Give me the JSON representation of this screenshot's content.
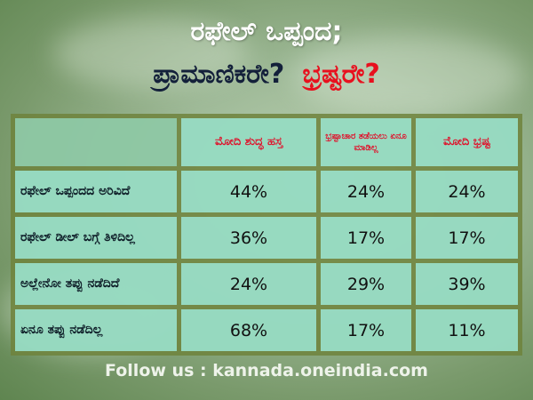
{
  "title": {
    "line1": "ರಫೇಲ್ ಒಪ್ಪಂದ;",
    "line2_part1": "ಪ್ರಾಮಾಣಿಕರೇ?",
    "line2_part2": "ಭ್ರಷ್ಟರೇ?"
  },
  "table": {
    "headers": [
      "ಮೋದಿ ಶುದ್ಧ ಹಸ್ತ",
      "ಭ್ರಷ್ಟಾಚಾರ ತಡೆಯಲು ಏನೂ ಮಾಡಿಲ್ಲ",
      "ಮೋದಿ ಭ್ರಷ್ಟ"
    ],
    "rows": [
      {
        "label": "ರಫೇಲ್ ಒಪ್ಪಂದದ ಅರಿವಿದೆ",
        "values": [
          "44%",
          "24%",
          "24%"
        ]
      },
      {
        "label": "ರಫೇಲ್ ಡೀಲ್ ಬಗ್ಗೆ ತಿಳಿದಿಲ್ಲ",
        "values": [
          "36%",
          "17%",
          "17%"
        ]
      },
      {
        "label": "ಅಲ್ಲೇನೋ ತಪ್ಪು ನಡೆದಿದೆ",
        "values": [
          "24%",
          "29%",
          "39%"
        ]
      },
      {
        "label": "ಏನೂ ತಪ್ಪು ನಡೆದಿಲ್ಲ",
        "values": [
          "68%",
          "17%",
          "11%"
        ]
      }
    ]
  },
  "footer": "Follow us : kannada.oneindia.com",
  "colors": {
    "title_red": "#e8101e",
    "title_dark": "#13203a",
    "border": "#6e823c",
    "cell": "#a0f0e1"
  }
}
